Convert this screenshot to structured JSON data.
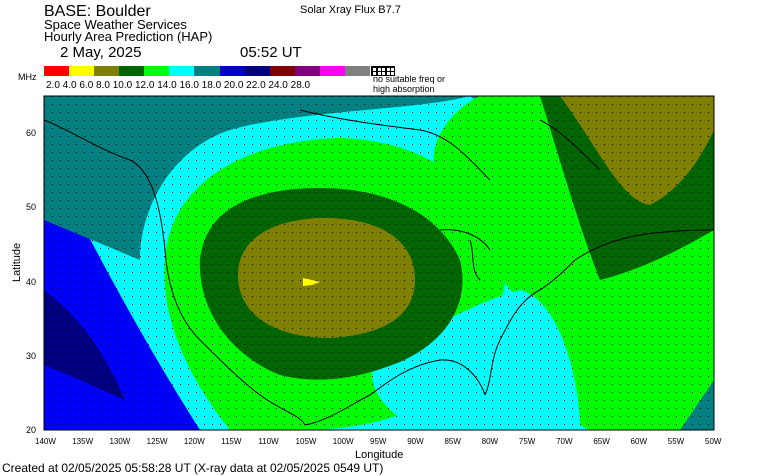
{
  "header": {
    "base": "BASE: Boulder",
    "service_line1": "Space Weather Services",
    "service_line2": "Hourly Area Prediction (HAP)",
    "xray_flux": "Solar Xray Flux B7.7",
    "date": "2 May, 2025",
    "time": "05:52 UT"
  },
  "legend": {
    "unit": "MHz",
    "labels": "2.0 4.0 6.0 8.0 10.0 12.0 14.0 16.0 18.0 20.0 22.0 24.0 28.0",
    "colors": [
      "#ff0000",
      "#ffff00",
      "#808000",
      "#006400",
      "#00ff00",
      "#00ffff",
      "#008080",
      "#0000cd",
      "#000080",
      "#800000",
      "#800080",
      "#ff00ff",
      "#808080"
    ],
    "no_freq_line1": "no suitable freq or",
    "no_freq_line2": "high absorption"
  },
  "axes": {
    "y_label": "Latitude",
    "x_label": "Longitude",
    "lat_ticks": [
      "60",
      "50",
      "40",
      "30",
      "20"
    ],
    "lon_ticks": [
      "140W",
      "135W",
      "130W",
      "125W",
      "120W",
      "115W",
      "110W",
      "105W",
      "100W",
      "95W",
      "90W",
      "85W",
      "80W",
      "75W",
      "70W",
      "65W",
      "60W",
      "55W",
      "50W"
    ]
  },
  "map_bands": {
    "colors": {
      "blue": "#0000ff",
      "navy": "#000080",
      "teal": "#008080",
      "cyan": "#00ffff",
      "lime": "#00ff00",
      "dkgreen": "#006400",
      "olive": "#808000",
      "marker": "#ffff00"
    }
  },
  "footer": "Created at 02/05/2025 05:58:28 UT (X-ray data at 02/05/2025 0549 UT)"
}
